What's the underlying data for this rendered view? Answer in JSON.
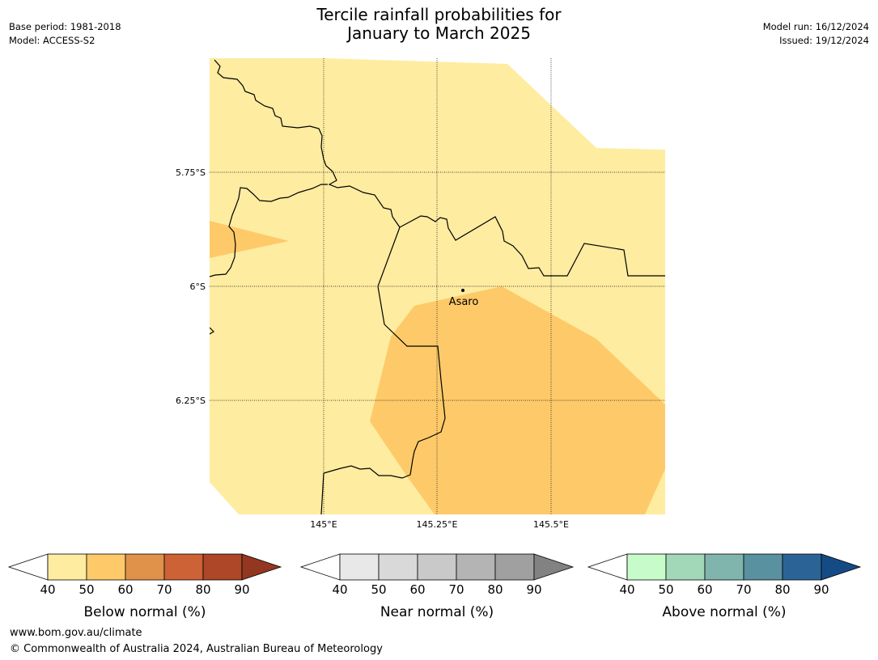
{
  "header": {
    "title_line1": "Tercile rainfall probabilities for",
    "title_line2": "January to March 2025",
    "base_period": "Base period: 1981-2018",
    "model": "Model: ACCESS-S2",
    "model_run": "Model run: 16/12/2024",
    "issued": "Issued: 19/12/2024"
  },
  "map": {
    "lat_labels": [
      "5.75°S",
      "6°S",
      "6.25°S"
    ],
    "lon_labels": [
      "145°E",
      "145.25°E",
      "145.5°E"
    ],
    "place": {
      "name": "Asaro",
      "lat": -6.01,
      "lon": 145.31
    },
    "colors": {
      "below_40_50": "#feeca0",
      "below_50_60": "#feca69"
    }
  },
  "colorbars": [
    {
      "label": "Below normal (%)",
      "ticks": [
        "40",
        "50",
        "60",
        "70",
        "80",
        "90"
      ],
      "colors": [
        "#feeca0",
        "#feca69",
        "#e0924a",
        "#cc6235",
        "#ad4727",
        "#933720"
      ]
    },
    {
      "label": "Near normal (%)",
      "ticks": [
        "40",
        "50",
        "60",
        "70",
        "80",
        "90"
      ],
      "colors": [
        "#e8e8e8",
        "#d9d9d9",
        "#c9c9c9",
        "#b4b4b4",
        "#a0a0a0",
        "#828282"
      ]
    },
    {
      "label": "Above normal (%)",
      "ticks": [
        "40",
        "50",
        "60",
        "70",
        "80",
        "90"
      ],
      "colors": [
        "#c7fbca",
        "#a2d8b7",
        "#80b5ad",
        "#5a91a0",
        "#2c6397",
        "#144b85"
      ]
    }
  ],
  "footer": {
    "url": "www.bom.gov.au/climate",
    "copyright": "© Commonwealth of Australia 2024, Australian Bureau of Meteorology"
  }
}
